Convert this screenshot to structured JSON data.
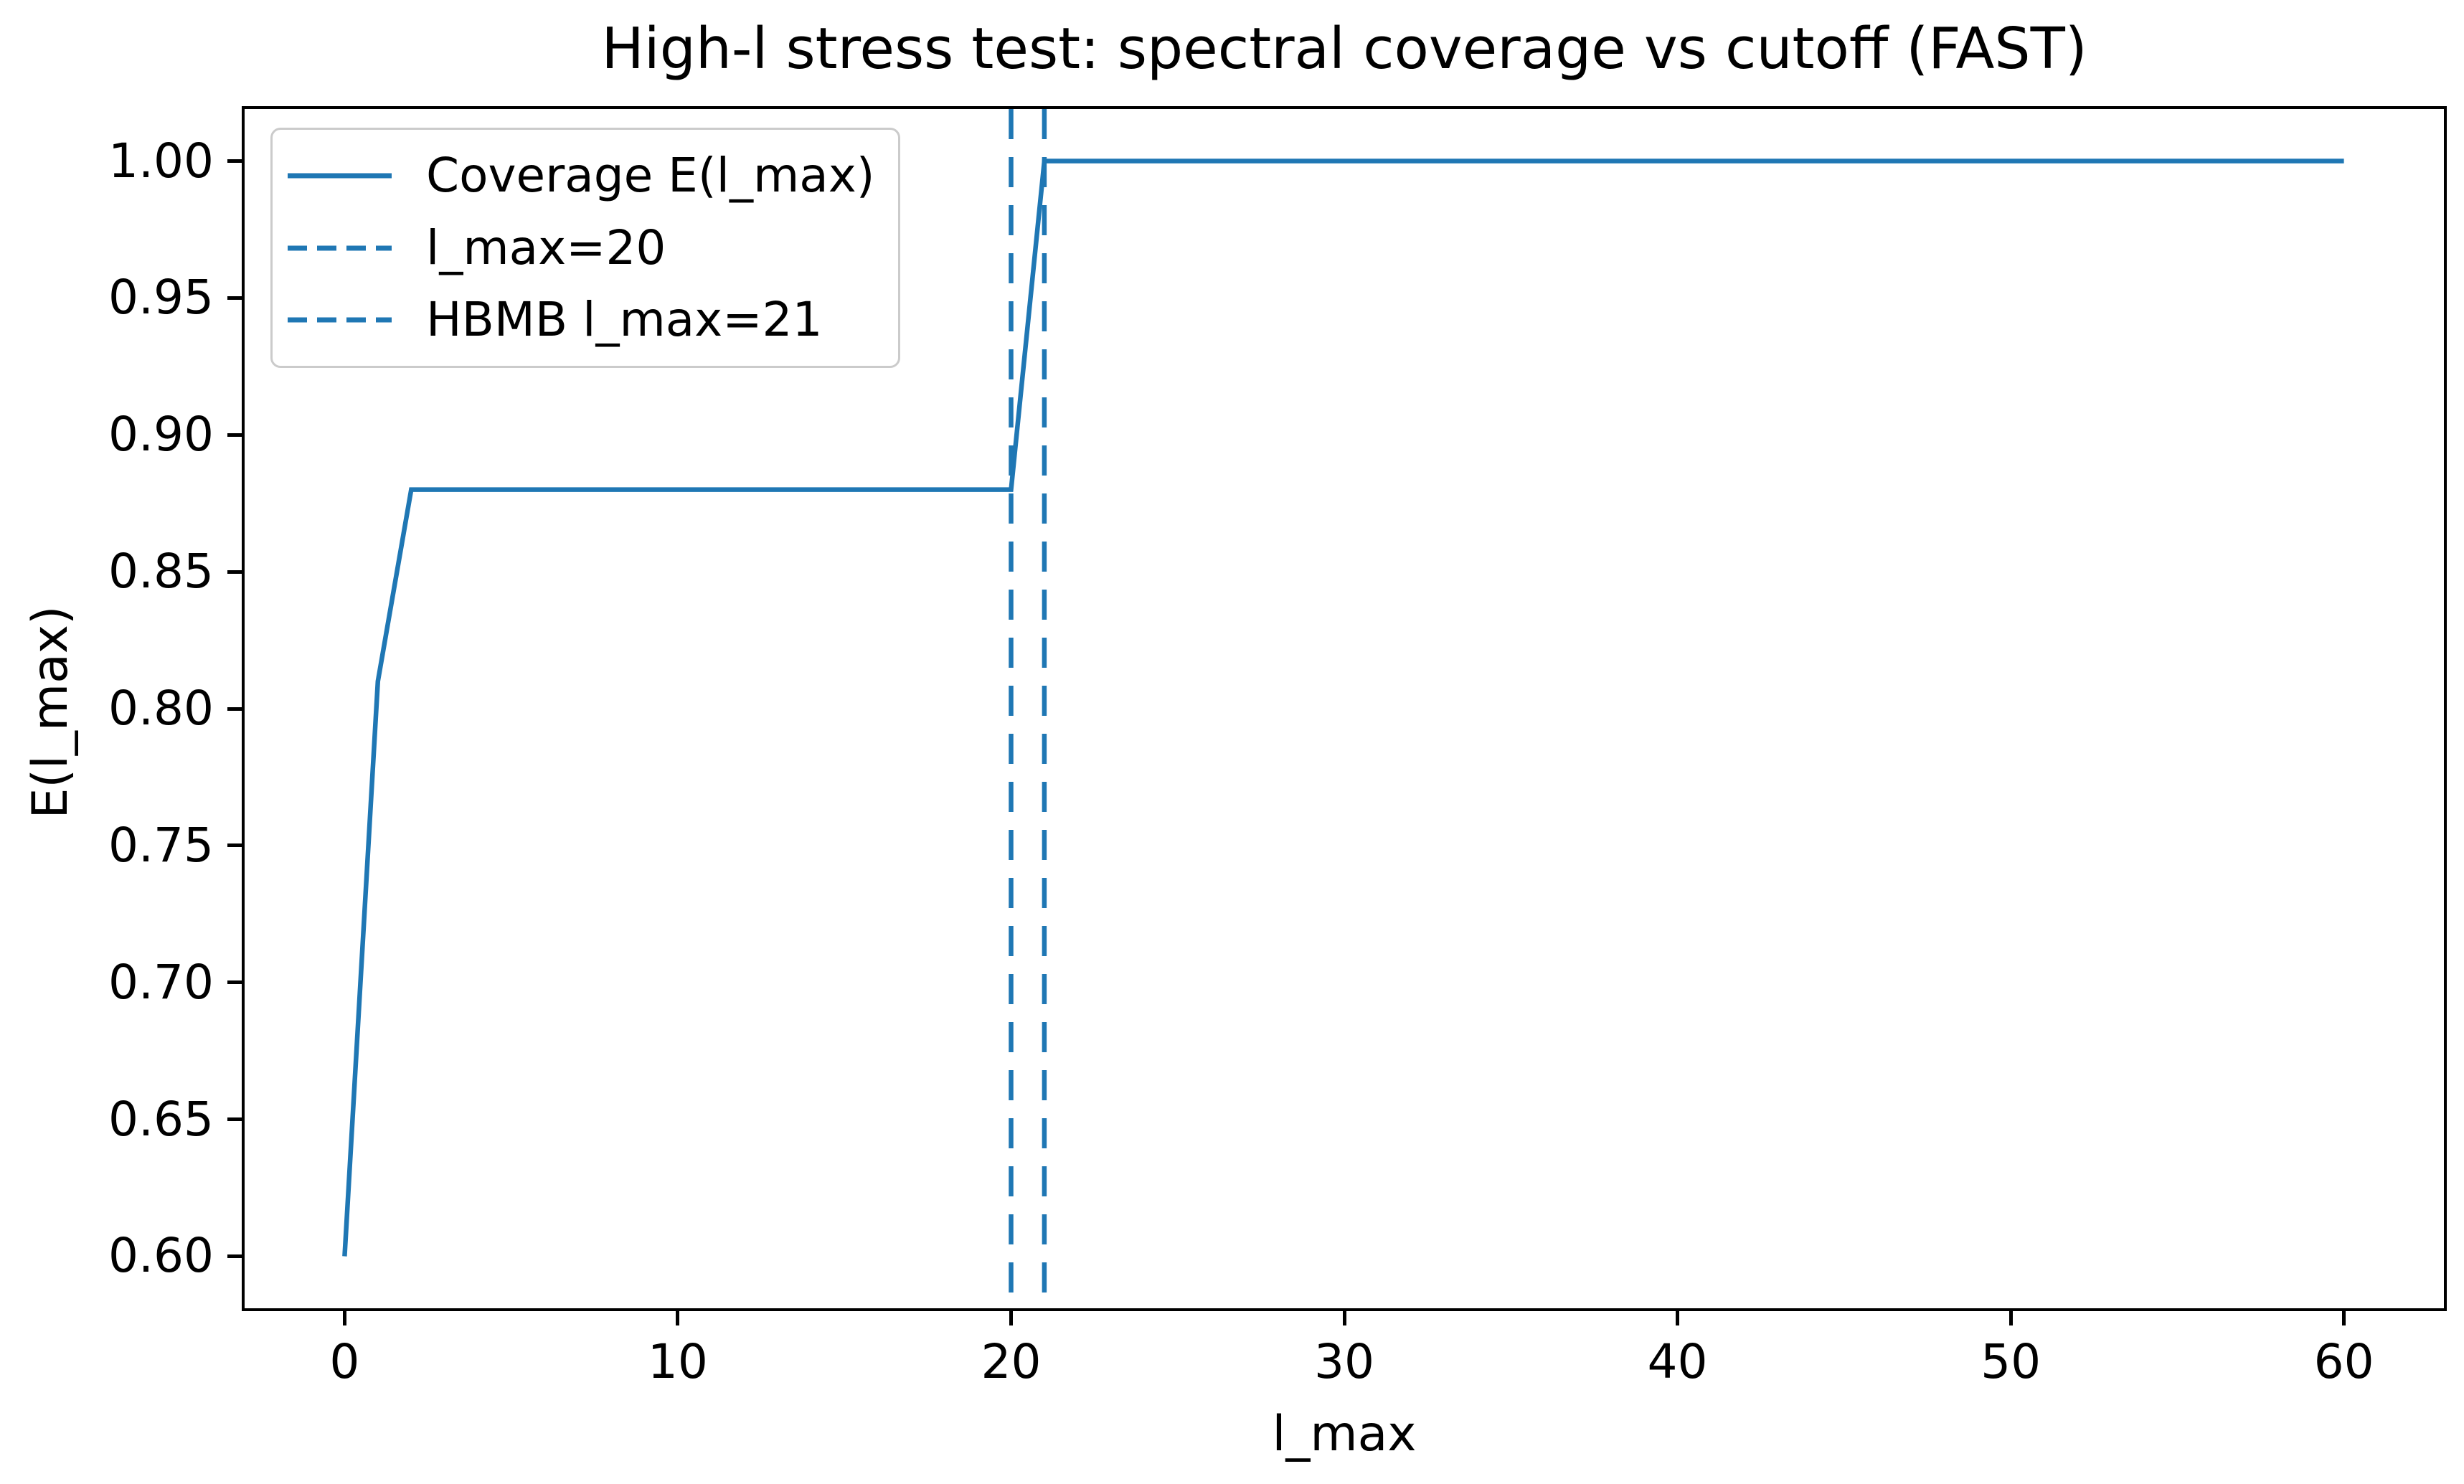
{
  "chart_data": {
    "type": "line",
    "title": "High-l stress test: spectral coverage vs cutoff (FAST)",
    "xlabel": "l_max",
    "ylabel": "E(l_max)",
    "xlim": [
      -3,
      63
    ],
    "ylim": [
      0.581,
      1.019
    ],
    "x_ticks": [
      0,
      10,
      20,
      30,
      40,
      50,
      60
    ],
    "y_ticks": [
      0.6,
      0.65,
      0.7,
      0.75,
      0.8,
      0.85,
      0.9,
      0.95,
      1.0
    ],
    "grid": false,
    "legend_position": "upper left",
    "accent_color": "#1f77b4",
    "axis_color": "#000000",
    "series": [
      {
        "name": "Coverage E(l_max)",
        "style": "solid",
        "points": [
          [
            0,
            0.6
          ],
          [
            1,
            0.81
          ],
          [
            2,
            0.88
          ],
          [
            20,
            0.88
          ],
          [
            21,
            1.0
          ],
          [
            60,
            1.0
          ]
        ]
      },
      {
        "name": "l_max=20",
        "style": "dashed-vline",
        "x": 20
      },
      {
        "name": "HBMB l_max=21",
        "style": "dashed-vline",
        "x": 21
      }
    ]
  },
  "legend": {
    "items": [
      {
        "label": "Coverage E(l_max)",
        "sample": "solid"
      },
      {
        "label": "l_max=20",
        "sample": "dashed"
      },
      {
        "label": "HBMB l_max=21",
        "sample": "dashed"
      }
    ]
  }
}
